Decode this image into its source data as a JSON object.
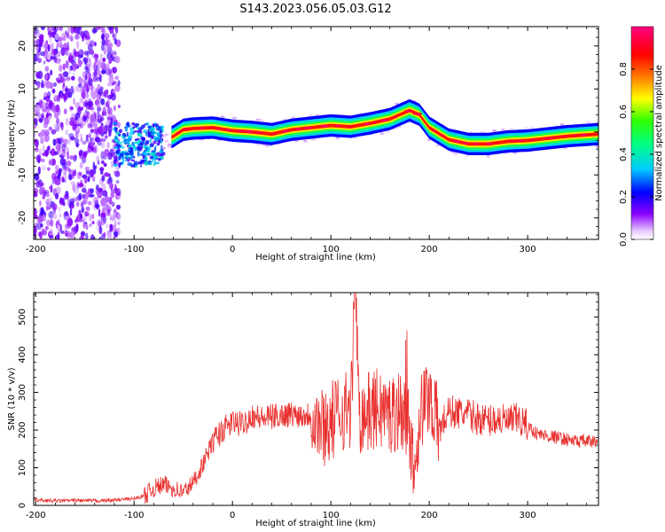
{
  "title": "S143.2023.056.05.03.G12",
  "colors": {
    "snr_line": "#e8312f",
    "frame": "#000000"
  },
  "chart_data": [
    {
      "type": "heatmap",
      "xlabel": "Height of straight line (km)",
      "ylabel": "Frequency (Hz)",
      "xlim": [
        -202,
        372
      ],
      "ylim": [
        -25,
        24.5
      ],
      "xticks": [
        -200,
        -100,
        0,
        100,
        200,
        300
      ],
      "yticks": [
        -20,
        -10,
        0,
        10,
        20
      ],
      "colorbar": {
        "label": "Normalized spectral amplitude",
        "ticks": [
          "0.0",
          "0.2",
          "0.4",
          "0.6",
          "0.8"
        ],
        "range": [
          0,
          1
        ],
        "colormap": "rainbow (white-magenta-blue-cyan-green-yellow-red-pink)"
      },
      "ridge": {
        "x": [
          -80,
          -60,
          -50,
          -40,
          -20,
          0,
          20,
          40,
          60,
          80,
          100,
          120,
          140,
          160,
          170,
          180,
          190,
          200,
          220,
          240,
          260,
          280,
          300,
          320,
          340,
          372
        ],
        "freq": [
          -3,
          -1,
          0.5,
          0.8,
          1,
          0.3,
          0,
          -0.5,
          0.5,
          1,
          1.5,
          1.2,
          2,
          3,
          4,
          5,
          4,
          1,
          -1.8,
          -2.8,
          -2.8,
          -2.2,
          -2,
          -1.5,
          -1,
          -0.5
        ]
      },
      "noise_region": {
        "x": [
          -202,
          -115
        ],
        "freq": [
          -25,
          24.5
        ]
      }
    },
    {
      "type": "line",
      "xlabel": "Height of straight line (km)",
      "ylabel": "SNR (10 * v/v)",
      "xlim": [
        -202,
        372
      ],
      "ylim": [
        0,
        565
      ],
      "xticks": [
        -200,
        -100,
        0,
        100,
        200,
        300
      ],
      "yticks": [
        0,
        100,
        200,
        300,
        400,
        500
      ],
      "series": [
        {
          "x": [
            -200,
            -180,
            -160,
            -140,
            -120,
            -100,
            -90,
            -80,
            -70,
            -60,
            -50,
            -40,
            -30,
            -20,
            -10,
            0,
            10,
            20,
            30,
            40,
            50,
            60,
            70,
            80,
            90,
            100,
            110,
            120,
            125,
            130,
            140,
            150,
            160,
            170,
            180,
            185,
            190,
            200,
            210,
            220,
            230,
            240,
            250,
            260,
            270,
            280,
            290,
            300,
            310,
            320,
            330,
            340,
            350,
            360,
            372
          ],
          "values": [
            14,
            12,
            13,
            12,
            14,
            18,
            25,
            45,
            55,
            45,
            35,
            60,
            110,
            170,
            200,
            220,
            215,
            240,
            230,
            235,
            240,
            242,
            240,
            243,
            210,
            220,
            250,
            260,
            560,
            240,
            250,
            260,
            240,
            260,
            200,
            90,
            240,
            300,
            200,
            250,
            245,
            240,
            230,
            225,
            230,
            220,
            230,
            210,
            190,
            185,
            180,
            175,
            170,
            170,
            168
          ]
        }
      ]
    }
  ]
}
